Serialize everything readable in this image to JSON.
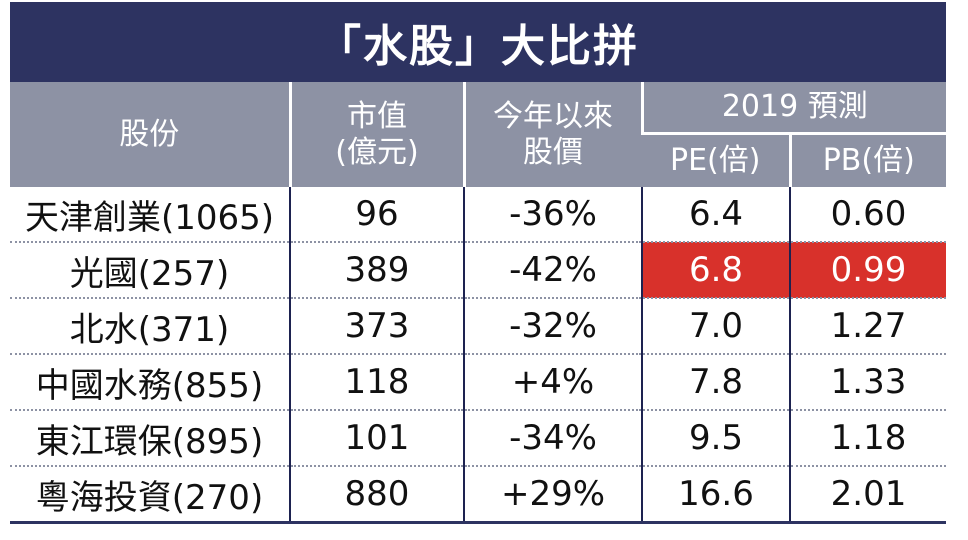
{
  "title": "「水股」大比拼",
  "headers": {
    "stock": "股份",
    "market_cap_line1": "市值",
    "market_cap_line2": "(億元)",
    "ytd_line1": "今年以來",
    "ytd_line2": "股價",
    "forecast_group": "2019 預測",
    "pe": "PE(倍)",
    "pb": "PB(倍)"
  },
  "rows": [
    {
      "stock": "天津創業(1065)",
      "market_cap": "96",
      "ytd": "-36%",
      "pe": "6.4",
      "pb": "0.60",
      "highlight": false
    },
    {
      "stock": "光國(257)",
      "market_cap": "389",
      "ytd": "-42%",
      "pe": "6.8",
      "pb": "0.99",
      "highlight": true
    },
    {
      "stock": "北水(371)",
      "market_cap": "373",
      "ytd": "-32%",
      "pe": "7.0",
      "pb": "1.27",
      "highlight": false
    },
    {
      "stock": "中國水務(855)",
      "market_cap": "118",
      "ytd": "+4%",
      "pe": "7.8",
      "pb": "1.33",
      "highlight": false
    },
    {
      "stock": "東江環保(895)",
      "market_cap": "101",
      "ytd": "-34%",
      "pe": "9.5",
      "pb": "1.18",
      "highlight": false
    },
    {
      "stock": "粵海投資(270)",
      "market_cap": "880",
      "ytd": "+29%",
      "pe": "16.6",
      "pb": "2.01",
      "highlight": false
    }
  ],
  "colors": {
    "title_bg": "#2d3361",
    "header_bg": "#8d92a4",
    "highlight_bg": "#d8312b"
  }
}
